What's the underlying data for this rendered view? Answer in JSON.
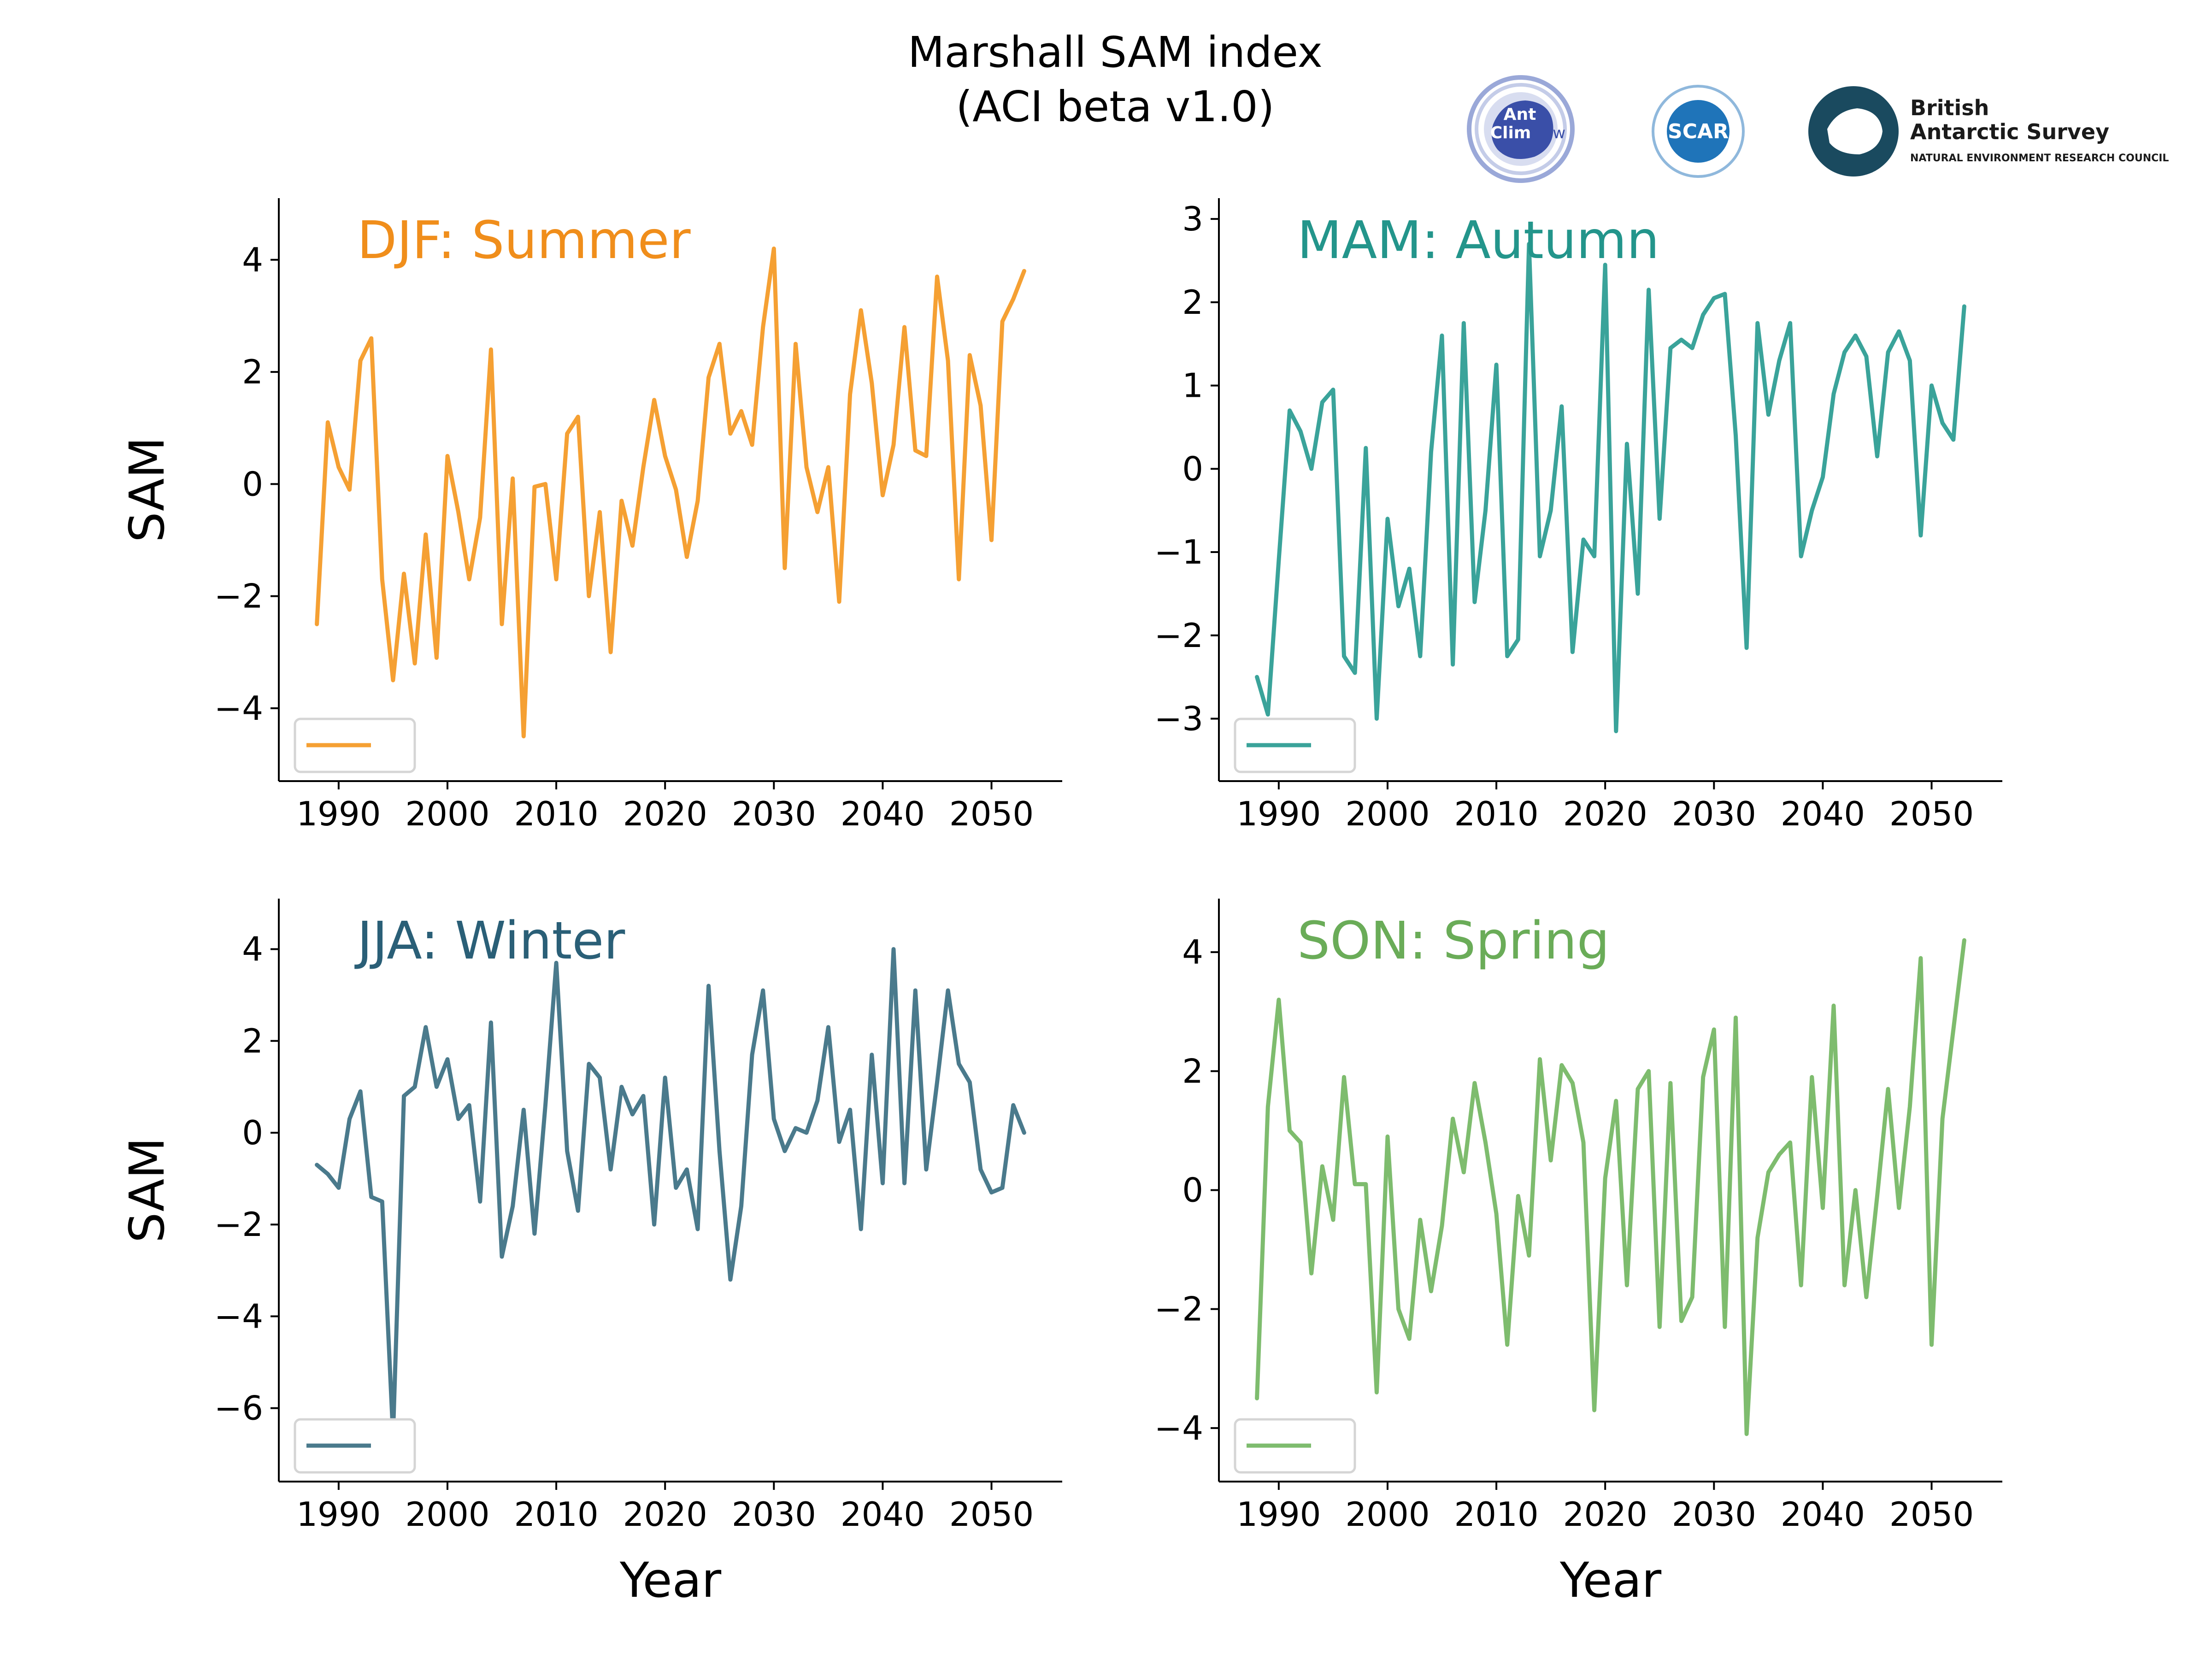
{
  "title": {
    "line1": "Marshall SAM index",
    "line2": "(ACI beta v1.0)"
  },
  "logos": {
    "antclim": {
      "line1": "Ant",
      "line2": "Clim",
      "line3": "Now",
      "color": "#3a4fa8"
    },
    "scar": {
      "text": "SCAR",
      "color": "#1f74b9"
    },
    "bas": {
      "line1": "British",
      "line2": "Antarctic Survey",
      "line3": "NATURAL ENVIRONMENT RESEARCH COUNCIL",
      "color": "#1a4a5f"
    }
  },
  "chart_data": [
    {
      "type": "line",
      "title": "DJF: Summer",
      "color": "#f5a033",
      "title_color": "#f08e1b",
      "xlabel": "",
      "ylabel": "SAM",
      "xlim": [
        1984.5,
        2056.5
      ],
      "ylim": [
        -5.3,
        5.1
      ],
      "xticks": [
        1990,
        2000,
        2010,
        2020,
        2030,
        2040,
        2050
      ],
      "yticks": [
        -4,
        -2,
        0,
        2,
        4
      ],
      "legend": "lower left",
      "x": [
        1988,
        1989,
        1990,
        1991,
        1992,
        1993,
        1994,
        1995,
        1996,
        1997,
        1998,
        1999,
        2000,
        2001,
        2002,
        2003,
        2004,
        2005,
        2006,
        2007,
        2008,
        2009,
        2010,
        2011,
        2012,
        2013,
        2014,
        2015,
        2016,
        2017,
        2018,
        2019,
        2020,
        2021,
        2022,
        2023,
        2024,
        2025,
        2026,
        2027,
        2028,
        2029,
        2030,
        2031,
        2032,
        2033,
        2034,
        2035,
        2036,
        2037,
        2038,
        2039,
        2040,
        2041,
        2042,
        2043,
        2044,
        2045,
        2046,
        2047,
        2048,
        2049,
        2050,
        2051,
        2052,
        2053
      ],
      "y": [
        -2.5,
        1.1,
        0.3,
        -0.1,
        2.2,
        2.6,
        -1.7,
        -3.5,
        -1.6,
        -3.2,
        -0.9,
        -3.1,
        0.5,
        -0.5,
        -1.7,
        -0.6,
        2.4,
        -2.5,
        0.1,
        -4.5,
        -0.05,
        0.0,
        -1.7,
        0.9,
        1.2,
        -2.0,
        -0.5,
        -3.0,
        -0.3,
        -1.1,
        0.3,
        1.5,
        0.5,
        -0.1,
        -1.3,
        -0.3,
        1.9,
        2.5,
        0.9,
        1.3,
        0.7,
        2.8,
        4.2,
        -1.5,
        2.5,
        0.3,
        -0.5,
        0.3,
        -2.1,
        1.6,
        3.1,
        1.8,
        -0.2,
        0.7,
        2.8,
        0.6,
        0.5,
        3.7,
        2.2,
        -1.7,
        2.3,
        1.4,
        -1.0,
        2.9,
        3.3,
        3.8
      ]
    },
    {
      "type": "line",
      "title": "MAM: Autumn",
      "color": "#3aa39a",
      "title_color": "#23958b",
      "xlabel": "",
      "ylabel": "",
      "xlim": [
        1984.5,
        2056.5
      ],
      "ylim": [
        -3.75,
        3.25
      ],
      "xticks": [
        1990,
        2000,
        2010,
        2020,
        2030,
        2040,
        2050
      ],
      "yticks": [
        -3,
        -2,
        -1,
        0,
        1,
        2,
        3
      ],
      "legend": "lower left",
      "x": [
        1988,
        1989,
        1990,
        1991,
        1992,
        1993,
        1994,
        1995,
        1996,
        1997,
        1998,
        1999,
        2000,
        2001,
        2002,
        2003,
        2004,
        2005,
        2006,
        2007,
        2008,
        2009,
        2010,
        2011,
        2012,
        2013,
        2014,
        2015,
        2016,
        2017,
        2018,
        2019,
        2020,
        2021,
        2022,
        2023,
        2024,
        2025,
        2026,
        2027,
        2028,
        2029,
        2030,
        2031,
        2032,
        2033,
        2034,
        2035,
        2036,
        2037,
        2038,
        2039,
        2040,
        2041,
        2042,
        2043,
        2044,
        2045,
        2046,
        2047,
        2048,
        2049,
        2050,
        2051,
        2052,
        2053
      ],
      "y": [
        -2.5,
        -2.95,
        -1.1,
        0.7,
        0.45,
        0.0,
        0.8,
        0.95,
        -2.25,
        -2.45,
        0.25,
        -3.0,
        -0.6,
        -1.65,
        -1.2,
        -2.25,
        0.2,
        1.6,
        -2.35,
        1.75,
        -1.6,
        -0.5,
        1.25,
        -2.25,
        -2.05,
        2.7,
        -1.05,
        -0.5,
        0.75,
        -2.2,
        -0.85,
        -1.05,
        2.45,
        -3.15,
        0.3,
        -1.5,
        2.15,
        -0.6,
        1.45,
        1.55,
        1.45,
        1.85,
        2.05,
        2.1,
        0.4,
        -2.15,
        1.75,
        0.65,
        1.3,
        1.75,
        -1.05,
        -0.5,
        -0.1,
        0.9,
        1.4,
        1.6,
        1.35,
        0.15,
        1.4,
        1.65,
        1.3,
        -0.8,
        1.0,
        0.55,
        0.35,
        1.95
      ]
    },
    {
      "type": "line",
      "title": "JJA: Winter",
      "color": "#4a7a8c",
      "title_color": "#2a5f77",
      "xlabel": "Year",
      "ylabel": "SAM",
      "xlim": [
        1984.5,
        2056.5
      ],
      "ylim": [
        -7.6,
        5.1
      ],
      "xticks": [
        1990,
        2000,
        2010,
        2020,
        2030,
        2040,
        2050
      ],
      "yticks": [
        -6,
        -4,
        -2,
        0,
        2,
        4
      ],
      "legend": "lower left",
      "x": [
        1988,
        1989,
        1990,
        1991,
        1992,
        1993,
        1994,
        1995,
        1996,
        1997,
        1998,
        1999,
        2000,
        2001,
        2002,
        2003,
        2004,
        2005,
        2006,
        2007,
        2008,
        2009,
        2010,
        2011,
        2012,
        2013,
        2014,
        2015,
        2016,
        2017,
        2018,
        2019,
        2020,
        2021,
        2022,
        2023,
        2024,
        2025,
        2026,
        2027,
        2028,
        2029,
        2030,
        2031,
        2032,
        2033,
        2034,
        2035,
        2036,
        2037,
        2038,
        2039,
        2040,
        2041,
        2042,
        2043,
        2044,
        2045,
        2046,
        2047,
        2048,
        2049,
        2050,
        2051,
        2052,
        2053
      ],
      "y": [
        -0.7,
        -0.9,
        -1.2,
        0.3,
        0.9,
        -1.4,
        -1.5,
        -6.6,
        0.8,
        1.0,
        2.3,
        1.0,
        1.6,
        0.3,
        0.6,
        -1.5,
        2.4,
        -2.7,
        -1.6,
        0.5,
        -2.2,
        0.6,
        3.7,
        -0.4,
        -1.7,
        1.5,
        1.2,
        -0.8,
        1.0,
        0.4,
        0.8,
        -2.0,
        1.2,
        -1.2,
        -0.8,
        -2.1,
        3.2,
        -0.4,
        -3.2,
        -1.6,
        1.7,
        3.1,
        0.3,
        -0.4,
        0.1,
        0.0,
        0.7,
        2.3,
        -0.2,
        0.5,
        -2.1,
        1.7,
        -1.1,
        4.0,
        -1.1,
        3.1,
        -0.8,
        1.1,
        3.1,
        1.5,
        1.1,
        -0.8,
        -1.3,
        -1.2,
        0.6,
        0.0
      ]
    },
    {
      "type": "line",
      "title": "SON: Spring",
      "color": "#7ebc6e",
      "title_color": "#6aac58",
      "xlabel": "Year",
      "ylabel": "",
      "xlim": [
        1984.5,
        2056.5
      ],
      "ylim": [
        -4.9,
        4.9
      ],
      "xticks": [
        1990,
        2000,
        2010,
        2020,
        2030,
        2040,
        2050
      ],
      "yticks": [
        -4,
        -2,
        0,
        2,
        4
      ],
      "legend": "lower left",
      "x": [
        1988,
        1989,
        1990,
        1991,
        1992,
        1993,
        1994,
        1995,
        1996,
        1997,
        1998,
        1999,
        2000,
        2001,
        2002,
        2003,
        2004,
        2005,
        2006,
        2007,
        2008,
        2009,
        2010,
        2011,
        2012,
        2013,
        2014,
        2015,
        2016,
        2017,
        2018,
        2019,
        2020,
        2021,
        2022,
        2023,
        2024,
        2025,
        2026,
        2027,
        2028,
        2029,
        2030,
        2031,
        2032,
        2033,
        2034,
        2035,
        2036,
        2037,
        2038,
        2039,
        2040,
        2041,
        2042,
        2043,
        2044,
        2045,
        2046,
        2047,
        2048,
        2049,
        2050,
        2051,
        2052,
        2053
      ],
      "y": [
        -3.5,
        1.4,
        3.2,
        1.0,
        0.8,
        -1.4,
        0.4,
        -0.5,
        1.9,
        0.1,
        0.1,
        -3.4,
        0.9,
        -2.0,
        -2.5,
        -0.5,
        -1.7,
        -0.6,
        1.2,
        0.3,
        1.8,
        0.8,
        -0.4,
        -2.6,
        -0.1,
        -1.1,
        2.2,
        0.5,
        2.1,
        1.8,
        0.8,
        -3.7,
        0.2,
        1.5,
        -1.6,
        1.7,
        2.0,
        -2.3,
        1.8,
        -2.2,
        -1.8,
        1.9,
        2.7,
        -2.3,
        2.9,
        -4.1,
        -0.8,
        0.3,
        0.6,
        0.8,
        -1.6,
        1.9,
        -0.3,
        3.1,
        -1.6,
        0.0,
        -1.8,
        -0.1,
        1.7,
        -0.3,
        1.4,
        3.9,
        -2.6,
        1.2,
        2.7,
        4.2
      ]
    }
  ]
}
